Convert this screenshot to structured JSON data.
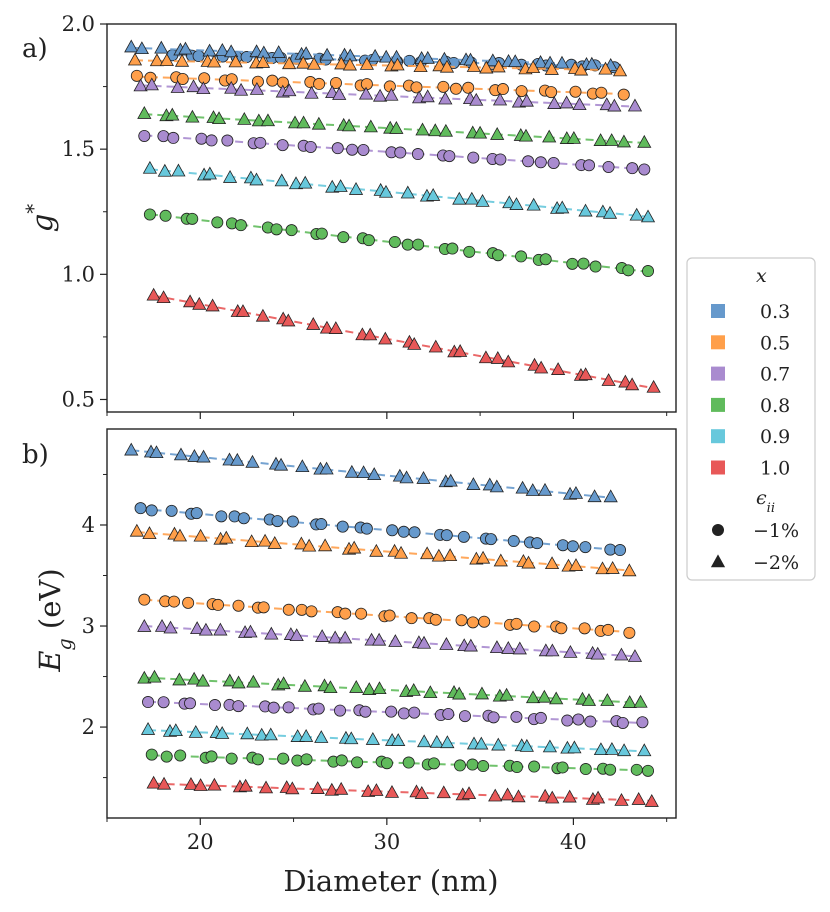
{
  "chart_data": [
    {
      "type": "scatter",
      "panel_label": "a)",
      "ylabel": "g*",
      "xlim": [
        15,
        45.5
      ],
      "ylim": [
        0.45,
        2.0
      ],
      "yticks": [
        0.5,
        1.0,
        1.5,
        2.0
      ],
      "ytick_labels": [
        "0.5",
        "1.0",
        "1.5",
        "2.0"
      ],
      "series": [
        {
          "x": "0.3",
          "strain": "-1%",
          "color": "#6699cc",
          "marker": "circle",
          "x_start": 18.5,
          "x_end": 42.2,
          "y_start": 1.875,
          "y_end": 1.83,
          "n": 29
        },
        {
          "x": "0.3",
          "strain": "-2%",
          "color": "#6699cc",
          "marker": "triangle",
          "x_start": 16.3,
          "x_end": 42.0,
          "y_start": 1.905,
          "y_end": 1.835,
          "n": 33
        },
        {
          "x": "0.5",
          "strain": "-1%",
          "color": "#ff9f4a",
          "marker": "circle",
          "x_start": 16.6,
          "x_end": 42.7,
          "y_start": 1.79,
          "y_end": 1.72,
          "n": 30
        },
        {
          "x": "0.5",
          "strain": "-2%",
          "color": "#ff9f4a",
          "marker": "triangle",
          "x_start": 16.5,
          "x_end": 42.5,
          "y_start": 1.855,
          "y_end": 1.815,
          "n": 30
        },
        {
          "x": "0.7",
          "strain": "-1%",
          "color": "#a98bcf",
          "marker": "circle",
          "x_start": 17.0,
          "x_end": 43.8,
          "y_start": 1.555,
          "y_end": 1.42,
          "n": 30
        },
        {
          "x": "0.7",
          "strain": "-2%",
          "color": "#a98bcf",
          "marker": "triangle",
          "x_start": 16.8,
          "x_end": 43.3,
          "y_start": 1.755,
          "y_end": 1.67,
          "n": 30
        },
        {
          "x": "0.8",
          "strain": "-1%",
          "color": "#60bb5c",
          "marker": "circle",
          "x_start": 17.3,
          "x_end": 44.0,
          "y_start": 1.24,
          "y_end": 1.01,
          "n": 32
        },
        {
          "x": "0.8",
          "strain": "-2%",
          "color": "#60bb5c",
          "marker": "triangle",
          "x_start": 17.0,
          "x_end": 43.8,
          "y_start": 1.64,
          "y_end": 1.525,
          "n": 32
        },
        {
          "x": "0.9",
          "strain": "-2%",
          "color": "#67c8dc",
          "marker": "triangle",
          "x_start": 17.3,
          "x_end": 44.0,
          "y_start": 1.42,
          "y_end": 1.23,
          "n": 32
        },
        {
          "x": "1.0",
          "strain": "-2%",
          "color": "#e85858",
          "marker": "triangle",
          "x_start": 17.5,
          "x_end": 44.3,
          "y_start": 0.915,
          "y_end": 0.545,
          "n": 33
        }
      ]
    },
    {
      "type": "scatter",
      "panel_label": "b)",
      "ylabel": "E_g (eV)",
      "xlabel": "Diameter (nm)",
      "xlim": [
        15,
        45.5
      ],
      "ylim": [
        1.1,
        4.95
      ],
      "yticks": [
        2,
        3,
        4
      ],
      "ytick_labels": [
        "2",
        "3",
        "4"
      ],
      "xticks": [
        20,
        30,
        40
      ],
      "xtick_labels": [
        "20",
        "30",
        "40"
      ],
      "series": [
        {
          "x": "0.3",
          "strain": "-2%",
          "color": "#6699cc",
          "marker": "triangle",
          "x_start": 16.3,
          "x_end": 42.0,
          "y_start": 4.74,
          "y_end": 4.27,
          "n": 32
        },
        {
          "x": "0.3",
          "strain": "-1%",
          "color": "#6699cc",
          "marker": "circle",
          "x_start": 16.8,
          "x_end": 42.5,
          "y_start": 4.16,
          "y_end": 3.75,
          "n": 32
        },
        {
          "x": "0.5",
          "strain": "-2%",
          "color": "#ff9f4a",
          "marker": "triangle",
          "x_start": 16.6,
          "x_end": 43.0,
          "y_start": 3.93,
          "y_end": 3.55,
          "n": 32
        },
        {
          "x": "0.5",
          "strain": "-1%",
          "color": "#ff9f4a",
          "marker": "circle",
          "x_start": 17.0,
          "x_end": 43.0,
          "y_start": 3.26,
          "y_end": 2.94,
          "n": 32
        },
        {
          "x": "0.7",
          "strain": "-2%",
          "color": "#a98bcf",
          "marker": "triangle",
          "x_start": 17.0,
          "x_end": 43.3,
          "y_start": 3.0,
          "y_end": 2.7,
          "n": 32
        },
        {
          "x": "0.8",
          "strain": "-2%",
          "color": "#60bb5c",
          "marker": "triangle",
          "x_start": 17.0,
          "x_end": 43.6,
          "y_start": 2.49,
          "y_end": 2.24,
          "n": 32
        },
        {
          "x": "0.7",
          "strain": "-1%",
          "color": "#a98bcf",
          "marker": "circle",
          "x_start": 17.2,
          "x_end": 43.7,
          "y_start": 2.25,
          "y_end": 2.04,
          "n": 32
        },
        {
          "x": "0.9",
          "strain": "-2%",
          "color": "#67c8dc",
          "marker": "triangle",
          "x_start": 17.2,
          "x_end": 43.8,
          "y_start": 1.97,
          "y_end": 1.76,
          "n": 32
        },
        {
          "x": "0.8",
          "strain": "-1%",
          "color": "#60bb5c",
          "marker": "circle",
          "x_start": 17.4,
          "x_end": 44.0,
          "y_start": 1.72,
          "y_end": 1.57,
          "n": 32
        },
        {
          "x": "1.0",
          "strain": "-2%",
          "color": "#e85858",
          "marker": "triangle",
          "x_start": 17.5,
          "x_end": 44.2,
          "y_start": 1.44,
          "y_end": 1.27,
          "n": 32
        }
      ]
    }
  ],
  "legend": {
    "title_x": "x",
    "title_strain": "ϵ",
    "title_strain_sub": "ii",
    "x_entries": [
      {
        "label": "0.3",
        "color": "#6699cc"
      },
      {
        "label": "0.5",
        "color": "#ff9f4a"
      },
      {
        "label": "0.7",
        "color": "#a98bcf"
      },
      {
        "label": "0.8",
        "color": "#60bb5c"
      },
      {
        "label": "0.9",
        "color": "#67c8dc"
      },
      {
        "label": "1.0",
        "color": "#e85858"
      }
    ],
    "strain_entries": [
      {
        "label": "−1%",
        "marker": "circle"
      },
      {
        "label": "−2%",
        "marker": "triangle"
      }
    ]
  }
}
